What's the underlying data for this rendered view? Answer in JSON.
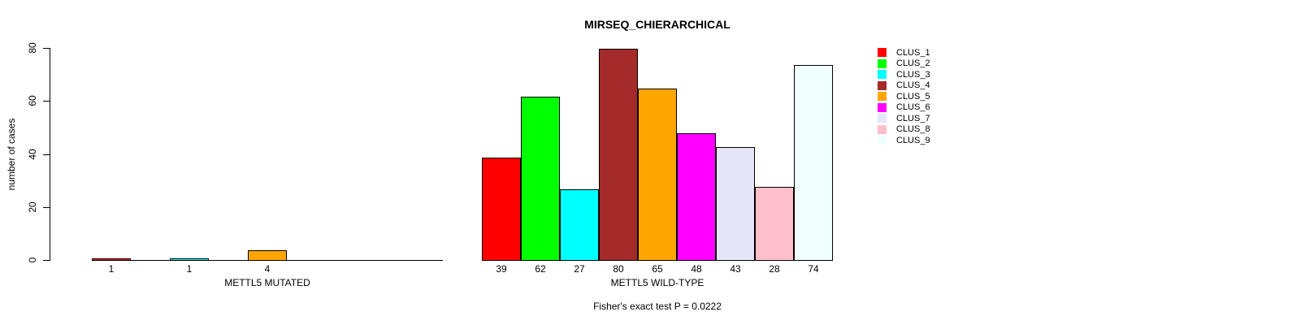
{
  "chart_data": {
    "type": "bar",
    "title": "MIRSEQ_CHIERARCHICAL",
    "ylabel": "number of cases",
    "ylim": [
      0,
      80
    ],
    "yticks": [
      0,
      20,
      40,
      60,
      80
    ],
    "grid": false,
    "legend_position": "right",
    "series": [
      {
        "name": "CLUS_1",
        "color": "#FF0000"
      },
      {
        "name": "CLUS_2",
        "color": "#00FF00"
      },
      {
        "name": "CLUS_3",
        "color": "#00FFFF"
      },
      {
        "name": "CLUS_4",
        "color": "#A52A2A"
      },
      {
        "name": "CLUS_5",
        "color": "#FFA500"
      },
      {
        "name": "CLUS_6",
        "color": "#FF00FF"
      },
      {
        "name": "CLUS_7",
        "color": "#E6E6FA"
      },
      {
        "name": "CLUS_8",
        "color": "#FFC0CB"
      },
      {
        "name": "CLUS_9",
        "color": "#F0FFFF"
      }
    ],
    "groups": [
      {
        "label": "METTL5 MUTATED",
        "values": [
          1,
          0,
          1,
          0,
          4,
          0,
          0,
          0,
          0
        ]
      },
      {
        "label": "METTL5 WILD-TYPE",
        "values": [
          39,
          62,
          27,
          80,
          65,
          48,
          43,
          28,
          74
        ]
      }
    ],
    "value_labels": {
      "METTL5 MUTATED": [
        "1",
        "1",
        "4"
      ],
      "METTL5 WILD-TYPE": [
        "39",
        "62",
        "27",
        "80",
        "65",
        "48",
        "43",
        "28",
        "74"
      ]
    },
    "footnote": "Fisher's exact test P = 0.0222"
  }
}
